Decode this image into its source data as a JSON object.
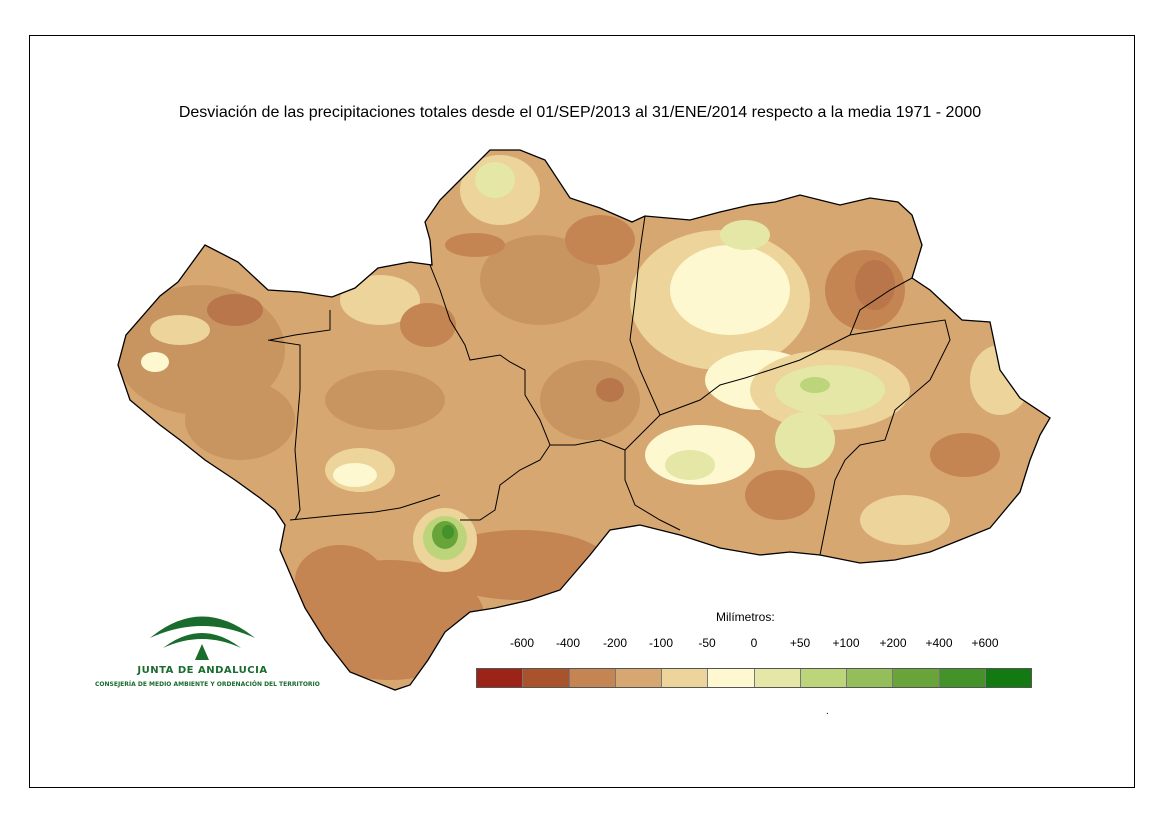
{
  "title": "Desviación de las precipitaciones totales desde el 01/SEP/2013 al 31/ENE/2014 respecto a la media 1971 - 2000",
  "legend": {
    "title": "Milímetros:",
    "labels": [
      "-600",
      "-400",
      "-200",
      "-100",
      "-50",
      "0",
      "+50",
      "+100",
      "+200",
      "+400",
      "+600"
    ],
    "colors": [
      "#9b2317",
      "#a8532b",
      "#c48552",
      "#d7a772",
      "#ecd49a",
      "#fdf8cf",
      "#e4e7a5",
      "#bcd57a",
      "#94be5c",
      "#69a43b",
      "#43922a",
      "#137a12"
    ]
  },
  "logo": {
    "name": "JUNTA DE ANDALUCIA",
    "subtitle": "CONSEJERÍA DE MEDIO AMBIENTE Y ORDENACIÓN DEL TERRITORIO",
    "color": "#1a6b2e"
  },
  "marker": "."
}
